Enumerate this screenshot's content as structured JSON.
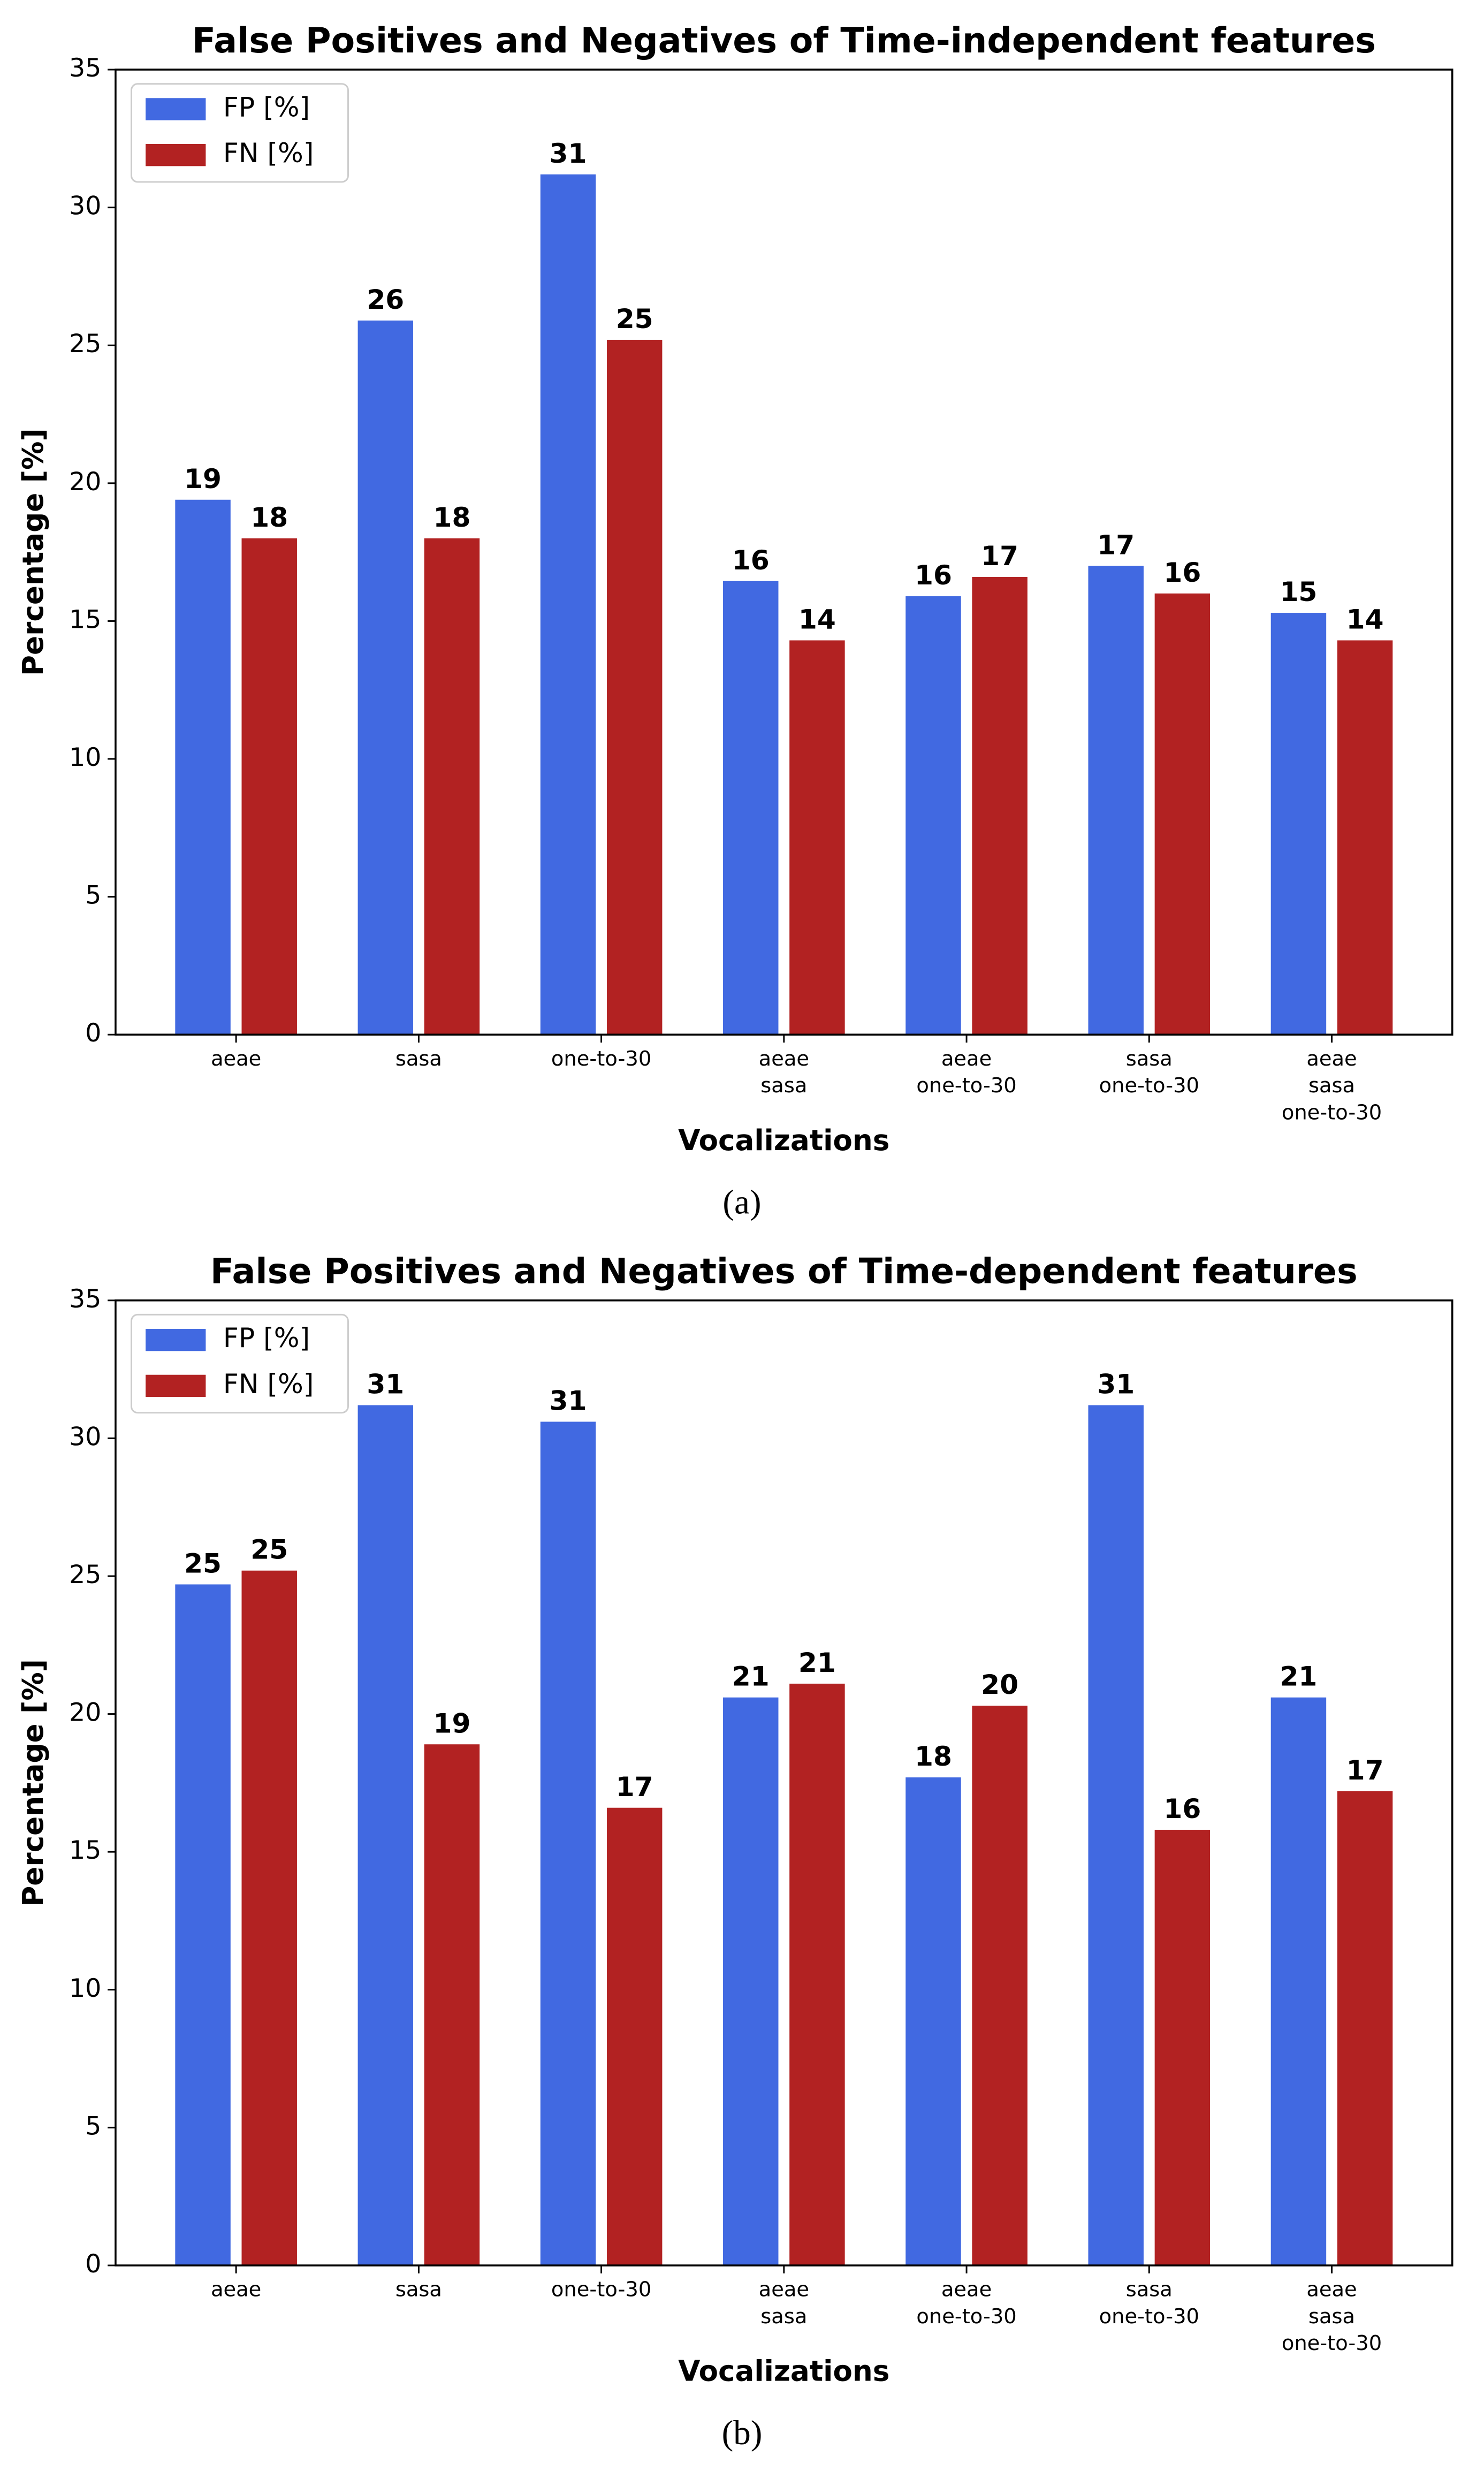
{
  "chart_data": [
    {
      "type": "bar",
      "title": "False Positives and Negatives of Time-independent features",
      "x_label": "Vocalizations",
      "y_label": "Percentage [%]",
      "caption": "(a)",
      "categories": [
        [
          "aeae"
        ],
        [
          "sasa"
        ],
        [
          "one-to-30"
        ],
        [
          "aeae",
          "sasa"
        ],
        [
          "aeae",
          "one-to-30"
        ],
        [
          "sasa",
          "one-to-30"
        ],
        [
          "aeae",
          "sasa",
          "one-to-30"
        ]
      ],
      "series": [
        {
          "name": "FP [%]",
          "color": "#4169e1",
          "values": [
            19.4,
            25.9,
            31.2,
            16.45,
            15.9,
            17.0,
            15.3
          ],
          "value_labels": [
            "19",
            "26",
            "31",
            "16",
            "16",
            "17",
            "15"
          ]
        },
        {
          "name": "FN [%]",
          "color": "#b22222",
          "values": [
            18.0,
            18.0,
            25.2,
            14.3,
            16.6,
            16.0,
            14.3
          ],
          "value_labels": [
            "18",
            "18",
            "25",
            "14",
            "17",
            "16",
            "14"
          ]
        }
      ],
      "ylim": [
        0,
        35
      ],
      "yticks": [
        0,
        5,
        10,
        15,
        20,
        25,
        30,
        35
      ],
      "legend": "upper left"
    },
    {
      "type": "bar",
      "title": "False Positives and Negatives of Time-dependent features",
      "x_label": "Vocalizations",
      "y_label": "Percentage [%]",
      "caption": "(b)",
      "categories": [
        [
          "aeae"
        ],
        [
          "sasa"
        ],
        [
          "one-to-30"
        ],
        [
          "aeae",
          "sasa"
        ],
        [
          "aeae",
          "one-to-30"
        ],
        [
          "sasa",
          "one-to-30"
        ],
        [
          "aeae",
          "sasa",
          "one-to-30"
        ]
      ],
      "series": [
        {
          "name": "FP [%]",
          "color": "#4169e1",
          "values": [
            24.7,
            31.2,
            30.6,
            20.6,
            17.7,
            31.2,
            20.6
          ],
          "value_labels": [
            "25",
            "31",
            "31",
            "21",
            "18",
            "31",
            "21"
          ]
        },
        {
          "name": "FN [%]",
          "color": "#b22222",
          "values": [
            25.2,
            18.9,
            16.6,
            21.1,
            20.3,
            15.8,
            17.2
          ],
          "value_labels": [
            "25",
            "19",
            "17",
            "21",
            "20",
            "16",
            "17"
          ]
        }
      ],
      "ylim": [
        0,
        35
      ],
      "yticks": [
        0,
        5,
        10,
        15,
        20,
        25,
        30,
        35
      ],
      "legend": "upper left"
    }
  ]
}
